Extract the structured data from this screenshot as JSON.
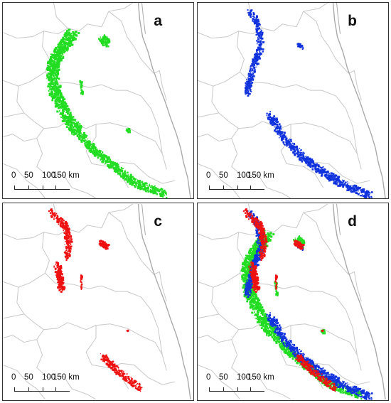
{
  "panels": [
    {
      "id": "a",
      "label": "a",
      "layer_color": "#22dd22"
    },
    {
      "id": "b",
      "label": "b",
      "layer_color": "#1133dd"
    },
    {
      "id": "c",
      "label": "c",
      "layer_color": "#ee1111"
    },
    {
      "id": "d",
      "label": "d",
      "layer_color": "composite"
    }
  ],
  "scale_bar": {
    "labels": [
      "0",
      "50",
      "100",
      "150 km"
    ]
  },
  "colors": {
    "green": "#22dd22",
    "blue": "#1133dd",
    "red": "#ee1111",
    "boundary": "#c8c8c8",
    "coast": "#aaaaaa"
  }
}
